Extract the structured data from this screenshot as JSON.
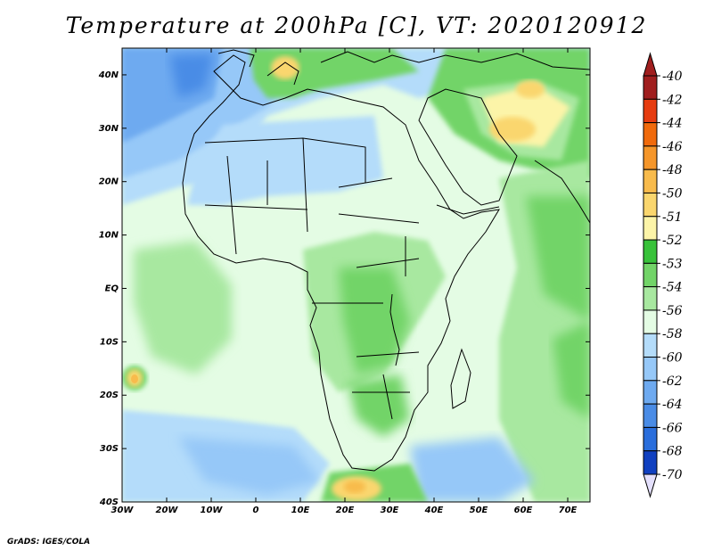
{
  "title": "Temperature at 200hPa [C], VT: 2020120912",
  "credit": "GrADS: IGES/COLA",
  "map": {
    "lon_range": [
      -30,
      75
    ],
    "lat_range": [
      -40,
      45
    ],
    "lon_ticks": [
      {
        "value": -30,
        "label": "30W"
      },
      {
        "value": -20,
        "label": "20W"
      },
      {
        "value": -10,
        "label": "10W"
      },
      {
        "value": 0,
        "label": "0"
      },
      {
        "value": 10,
        "label": "10E"
      },
      {
        "value": 20,
        "label": "20E"
      },
      {
        "value": 30,
        "label": "30E"
      },
      {
        "value": 40,
        "label": "40E"
      },
      {
        "value": 50,
        "label": "50E"
      },
      {
        "value": 60,
        "label": "60E"
      },
      {
        "value": 70,
        "label": "70E"
      }
    ],
    "lat_ticks": [
      {
        "value": 40,
        "label": "40N"
      },
      {
        "value": 30,
        "label": "30N"
      },
      {
        "value": 20,
        "label": "20N"
      },
      {
        "value": 10,
        "label": "10N"
      },
      {
        "value": 0,
        "label": "EQ"
      },
      {
        "value": -10,
        "label": "10S"
      },
      {
        "value": -20,
        "label": "20S"
      },
      {
        "value": -30,
        "label": "30S"
      },
      {
        "value": -40,
        "label": "40S"
      }
    ]
  },
  "colorbar": {
    "levels": [
      {
        "label": "-40",
        "color": "#a01e1e"
      },
      {
        "label": "-42",
        "color": "#e63c10"
      },
      {
        "label": "-44",
        "color": "#f06a0c"
      },
      {
        "label": "-46",
        "color": "#f5962a"
      },
      {
        "label": "-48",
        "color": "#f8bb4c"
      },
      {
        "label": "-50",
        "color": "#fad66e"
      },
      {
        "label": "-51",
        "color": "#fcf4a8"
      },
      {
        "label": "-52",
        "color": "#38c23a"
      },
      {
        "label": "-53",
        "color": "#72d468"
      },
      {
        "label": "-54",
        "color": "#a8e8a0"
      },
      {
        "label": "-56",
        "color": "#e4fce4"
      },
      {
        "label": "-58",
        "color": "#b4dcfa"
      },
      {
        "label": "-60",
        "color": "#96c8f8"
      },
      {
        "label": "-62",
        "color": "#6eaaf0"
      },
      {
        "label": "-64",
        "color": "#4a8ce6"
      },
      {
        "label": "-66",
        "color": "#2a6edc"
      },
      {
        "label": "-68",
        "color": "#1040c0"
      },
      {
        "label": "-70",
        "color": "#0a1a78"
      }
    ],
    "top_arrow_color": "#a01e1e",
    "bottom_arrow_color": "#e4e0fc"
  }
}
